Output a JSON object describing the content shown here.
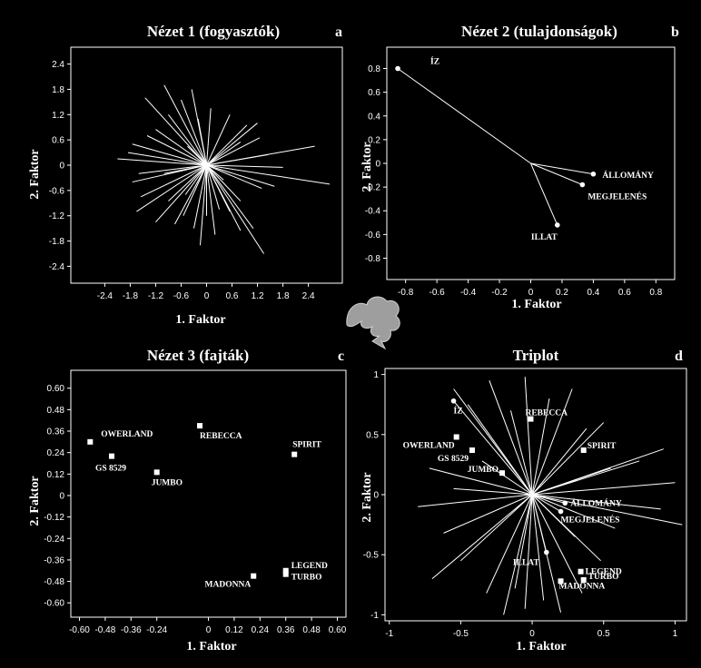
{
  "figure": {
    "background": "#000000",
    "foreground": "#ffffff",
    "arrow_icon": "swirl-arrow-icon"
  },
  "chart_data": [
    {
      "id": "a",
      "type": "scatter",
      "title": "Nézet 1 (fogyasztók)",
      "letter": "a",
      "xlabel": "1. Faktor",
      "ylabel": "2. Faktor",
      "xlim": [
        -3.2,
        3.2
      ],
      "ylim": [
        -2.8,
        2.8
      ],
      "xticks": [
        "-2.4",
        "-1.8",
        "-1.2",
        "-0.6",
        "0",
        "0.6",
        "1.2",
        "1.8",
        "2.4"
      ],
      "yticks": [
        "2.4",
        "1.8",
        "1.2",
        "0.6",
        "0",
        "-0.6",
        "-1.2",
        "-1.8",
        "-2.4"
      ],
      "grid": false,
      "rays": [
        [
          -1.0,
          1.9
        ],
        [
          -1.45,
          1.6
        ],
        [
          -0.6,
          1.55
        ],
        [
          -0.9,
          1.2
        ],
        [
          -0.35,
          1.8
        ],
        [
          -1.4,
          0.7
        ],
        [
          -1.75,
          0.5
        ],
        [
          -1.2,
          0.85
        ],
        [
          -2.1,
          0.15
        ],
        [
          -1.85,
          0.3
        ],
        [
          -0.2,
          1.1
        ],
        [
          0.1,
          1.35
        ],
        [
          0.55,
          1.2
        ],
        [
          0.95,
          0.95
        ],
        [
          1.25,
          0.65
        ],
        [
          1.2,
          1.0
        ],
        [
          0.8,
          0.55
        ],
        [
          1.45,
          0.25
        ],
        [
          2.55,
          0.45
        ],
        [
          1.8,
          -0.05
        ],
        [
          2.9,
          -0.45
        ],
        [
          1.6,
          -0.5
        ],
        [
          1.3,
          -0.55
        ],
        [
          0.8,
          -0.85
        ],
        [
          1.35,
          -2.1
        ],
        [
          1.1,
          -1.5
        ],
        [
          0.8,
          -1.55
        ],
        [
          0.55,
          -1.1
        ],
        [
          0.3,
          -1.05
        ],
        [
          0.0,
          -1.2
        ],
        [
          0.2,
          -1.65
        ],
        [
          -0.15,
          -1.9
        ],
        [
          -0.3,
          -1.5
        ],
        [
          -0.55,
          -1.2
        ],
        [
          -0.75,
          -1.4
        ],
        [
          -1.2,
          -1.35
        ],
        [
          -1.65,
          -1.1
        ],
        [
          -1.55,
          -0.75
        ],
        [
          -1.75,
          -0.4
        ],
        [
          -0.9,
          -0.85
        ],
        [
          -0.5,
          -0.7
        ],
        [
          -1.0,
          -0.2
        ],
        [
          -0.45,
          0.45
        ],
        [
          -1.6,
          -0.2
        ],
        [
          0.4,
          -0.35
        ]
      ]
    },
    {
      "id": "b",
      "type": "biplot",
      "title": "Nézet 2 (tulajdonságok)",
      "letter": "b",
      "xlabel": "1. Faktor",
      "ylabel": "2. Faktor",
      "xlim": [
        -0.92,
        0.92
      ],
      "ylim": [
        -0.98,
        0.98
      ],
      "xticks": [
        "-0.8",
        "-0.6",
        "-0.4",
        "-0.2",
        "0",
        "0.2",
        "0.4",
        "0.6",
        "0.8"
      ],
      "yticks": [
        "0.8",
        "0.6",
        "0.4",
        "0.2",
        "0",
        "-0.2",
        "-0.4",
        "-0.6",
        "-0.8"
      ],
      "grid": false,
      "points": [
        {
          "label": "ÍZ",
          "x": -0.85,
          "y": 0.8
        },
        {
          "label": "ÁLLOMÁNY",
          "x": 0.4,
          "y": -0.09
        },
        {
          "label": "MEGJELENÉS",
          "x": 0.33,
          "y": -0.18
        },
        {
          "label": "ILLAT",
          "x": 0.17,
          "y": -0.52
        }
      ]
    },
    {
      "id": "c",
      "type": "scatter",
      "title": "Nézet 3 (fajták)",
      "letter": "c",
      "xlabel": "1. Faktor",
      "ylabel": "2. Faktor",
      "xlim": [
        -0.64,
        0.64
      ],
      "ylim": [
        -0.68,
        0.7
      ],
      "xticks": [
        "-0.60",
        "-0.48",
        "-0.36",
        "-0.24",
        "0",
        "0.12",
        "0.24",
        "0.36",
        "0.48",
        "0.60"
      ],
      "yticks": [
        "0.60",
        "0.48",
        "0.36",
        "0.24",
        "0.12",
        "0",
        "-0.12",
        "-0.24",
        "-0.36",
        "-0.48",
        "-0.60"
      ],
      "grid": false,
      "points": [
        {
          "label": "OWERLAND",
          "x": -0.55,
          "y": 0.3
        },
        {
          "label": "GS 8529",
          "x": -0.45,
          "y": 0.22
        },
        {
          "label": "REBECCA",
          "x": -0.04,
          "y": 0.39
        },
        {
          "label": "JUMBO",
          "x": -0.24,
          "y": 0.13
        },
        {
          "label": "SPIRIT",
          "x": 0.4,
          "y": 0.23
        },
        {
          "label": "LEGEND",
          "x": 0.36,
          "y": -0.42
        },
        {
          "label": "TURBO",
          "x": 0.36,
          "y": -0.44
        },
        {
          "label": "MADONNA",
          "x": 0.21,
          "y": -0.45
        }
      ]
    },
    {
      "id": "d",
      "type": "triplot",
      "title": "Triplot",
      "letter": "d",
      "xlabel": "1. Faktor",
      "ylabel": "2. Faktor",
      "xlim": [
        -1.03,
        1.08
      ],
      "ylim": [
        -1.05,
        1.05
      ],
      "xticks": [
        "-1",
        "-0.5",
        "0",
        "0.5",
        "1"
      ],
      "yticks": [
        "1",
        "0.5",
        "0",
        "-0.5",
        "-1"
      ],
      "grid": false,
      "attributes": [
        {
          "label": "ÍZ",
          "x": -0.55,
          "y": 0.78
        },
        {
          "label": "ÁLLOMÁNY",
          "x": 0.23,
          "y": -0.07
        },
        {
          "label": "MEGJELENÉS",
          "x": 0.2,
          "y": -0.14
        },
        {
          "label": "ILLAT",
          "x": 0.1,
          "y": -0.48
        }
      ],
      "varieties": [
        {
          "label": "OWERLAND",
          "x": -0.53,
          "y": 0.48
        },
        {
          "label": "GS 8529",
          "x": -0.42,
          "y": 0.37
        },
        {
          "label": "REBECCA",
          "x": -0.01,
          "y": 0.63
        },
        {
          "label": "JUMBO",
          "x": -0.21,
          "y": 0.18
        },
        {
          "label": "SPIRIT",
          "x": 0.36,
          "y": 0.37
        },
        {
          "label": "LEGEND",
          "x": 0.34,
          "y": -0.64
        },
        {
          "label": "TURBO",
          "x": 0.36,
          "y": -0.71
        },
        {
          "label": "MADONNA",
          "x": 0.2,
          "y": -0.72
        }
      ],
      "rays": [
        [
          -0.55,
          0.88
        ],
        [
          -0.45,
          0.75
        ],
        [
          -0.3,
          0.95
        ],
        [
          -0.15,
          0.7
        ],
        [
          -0.05,
          0.98
        ],
        [
          0.12,
          0.8
        ],
        [
          0.28,
          0.88
        ],
        [
          0.38,
          0.55
        ],
        [
          0.5,
          0.6
        ],
        [
          0.75,
          0.28
        ],
        [
          0.92,
          0.38
        ],
        [
          1.0,
          0.1
        ],
        [
          1.05,
          -0.25
        ],
        [
          0.9,
          -0.12
        ],
        [
          0.58,
          -0.28
        ],
        [
          0.48,
          -0.55
        ],
        [
          0.35,
          -0.82
        ],
        [
          0.2,
          -0.98
        ],
        [
          0.08,
          -0.88
        ],
        [
          -0.05,
          -0.95
        ],
        [
          -0.12,
          -0.78
        ],
        [
          -0.2,
          -1.0
        ],
        [
          -0.32,
          -0.82
        ],
        [
          -0.5,
          -0.55
        ],
        [
          -0.7,
          -0.7
        ],
        [
          -0.62,
          -0.32
        ],
        [
          -0.8,
          -0.1
        ],
        [
          -0.55,
          0.05
        ],
        [
          -0.72,
          0.22
        ],
        [
          -0.35,
          0.28
        ],
        [
          0.55,
          0.22
        ],
        [
          0.3,
          -0.35
        ]
      ]
    }
  ]
}
